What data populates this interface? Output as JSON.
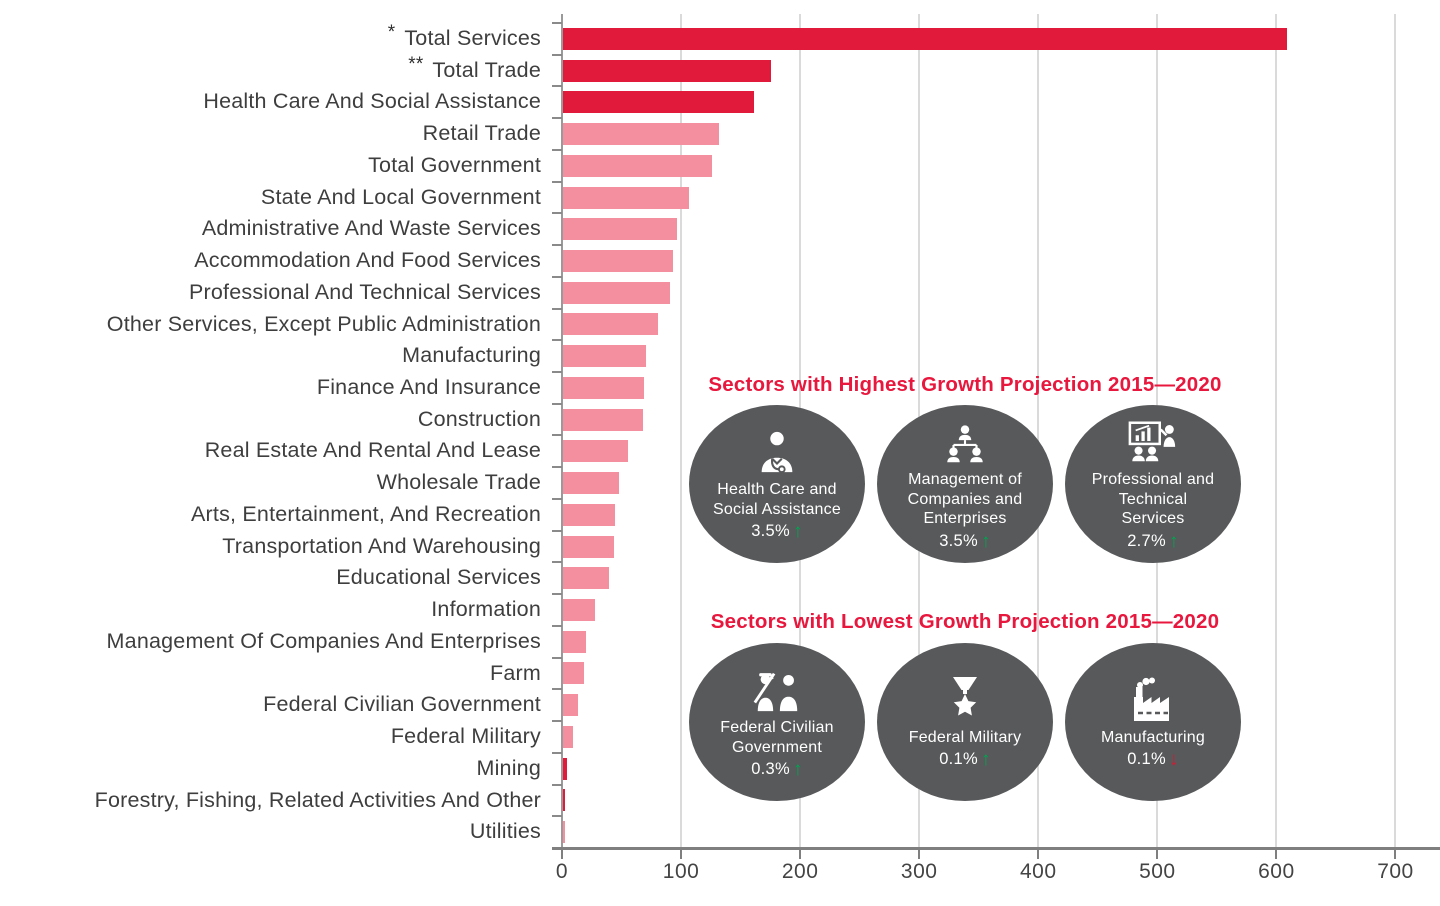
{
  "chart_data": {
    "type": "bar",
    "orientation": "horizontal",
    "title": "",
    "xlabel": "",
    "ylabel": "",
    "xlim": [
      0,
      700
    ],
    "x_ticks": [
      0,
      100,
      200,
      300,
      400,
      500,
      600,
      700
    ],
    "grid": "vertical-light-gray",
    "categories": [
      "Total Services",
      "Total Trade",
      "Health Care And Social Assistance",
      "Retail Trade",
      "Total Government",
      "State And Local Government",
      "Administrative And Waste Services",
      "Accommodation And Food Services",
      "Professional And Technical Services",
      "Other Services, Except Public Administration",
      "Manufacturing",
      "Finance And Insurance",
      "Construction",
      "Real Estate And Rental And Lease",
      "Wholesale Trade",
      "Arts, Entertainment, And Recreation",
      "Transportation And Warehousing",
      "Educational Services",
      "Information",
      "Management Of Companies And Enterprises",
      "Farm",
      "Federal Civilian Government",
      "Federal Military",
      "Mining",
      "Forestry, Fishing, Related Activities And Other",
      "Utilities"
    ],
    "category_prefixes": [
      "*",
      "**",
      "",
      "",
      "",
      "",
      "",
      "",
      "",
      "",
      "",
      "",
      "",
      "",
      "",
      "",
      "",
      "",
      "",
      "",
      "",
      "",
      "",
      "",
      "",
      ""
    ],
    "values": [
      608,
      175,
      160,
      131,
      125,
      106,
      96,
      92,
      90,
      80,
      70,
      68,
      67,
      55,
      47,
      44,
      43,
      39,
      27,
      19,
      18,
      13,
      8,
      3,
      2,
      1
    ],
    "bar_color_keys": [
      "crimson",
      "crimson",
      "crimson",
      "pink",
      "pink",
      "pink",
      "pink",
      "pink",
      "pink",
      "pink",
      "pink",
      "pink",
      "pink",
      "pink",
      "pink",
      "pink",
      "pink",
      "pink",
      "pink",
      "pink",
      "pink",
      "pink",
      "pink",
      "crimson",
      "crimson",
      "pink"
    ]
  },
  "colors": {
    "crimson": "#E11A3C",
    "pink": "#F48FA0",
    "title_red": "#E8173D",
    "circle_gray": "#58595B",
    "green_up": "#00A551",
    "red_down": "#D71931",
    "gridline": "#DADADA",
    "axis": "#7F7F7F",
    "label_text": "#3E3E3E"
  },
  "insets": {
    "highest": {
      "title": "Sectors with Highest Growth Projection 2015—2020",
      "items": [
        {
          "name": "Health Care and Social Assistance",
          "pct": "3.5%",
          "direction": "up",
          "icon": "doctor-icon"
        },
        {
          "name": "Management of Companies and Enterprises",
          "pct": "3.5%",
          "direction": "up",
          "icon": "org-chart-icon"
        },
        {
          "name": "Professional and Technical Services",
          "pct": "2.7%",
          "direction": "up",
          "icon": "presentation-chart-icon"
        }
      ]
    },
    "lowest": {
      "title": "Sectors with Lowest Growth Projection 2015—2020",
      "items": [
        {
          "name": "Federal Civilian Government",
          "pct": "0.3%",
          "direction": "up",
          "icon": "soldier-civilian-icon"
        },
        {
          "name": "Federal Military",
          "pct": "0.1%",
          "direction": "up",
          "icon": "medal-star-icon"
        },
        {
          "name": "Manufacturing",
          "pct": "0.1%",
          "direction": "down",
          "icon": "factory-icon"
        }
      ]
    }
  }
}
